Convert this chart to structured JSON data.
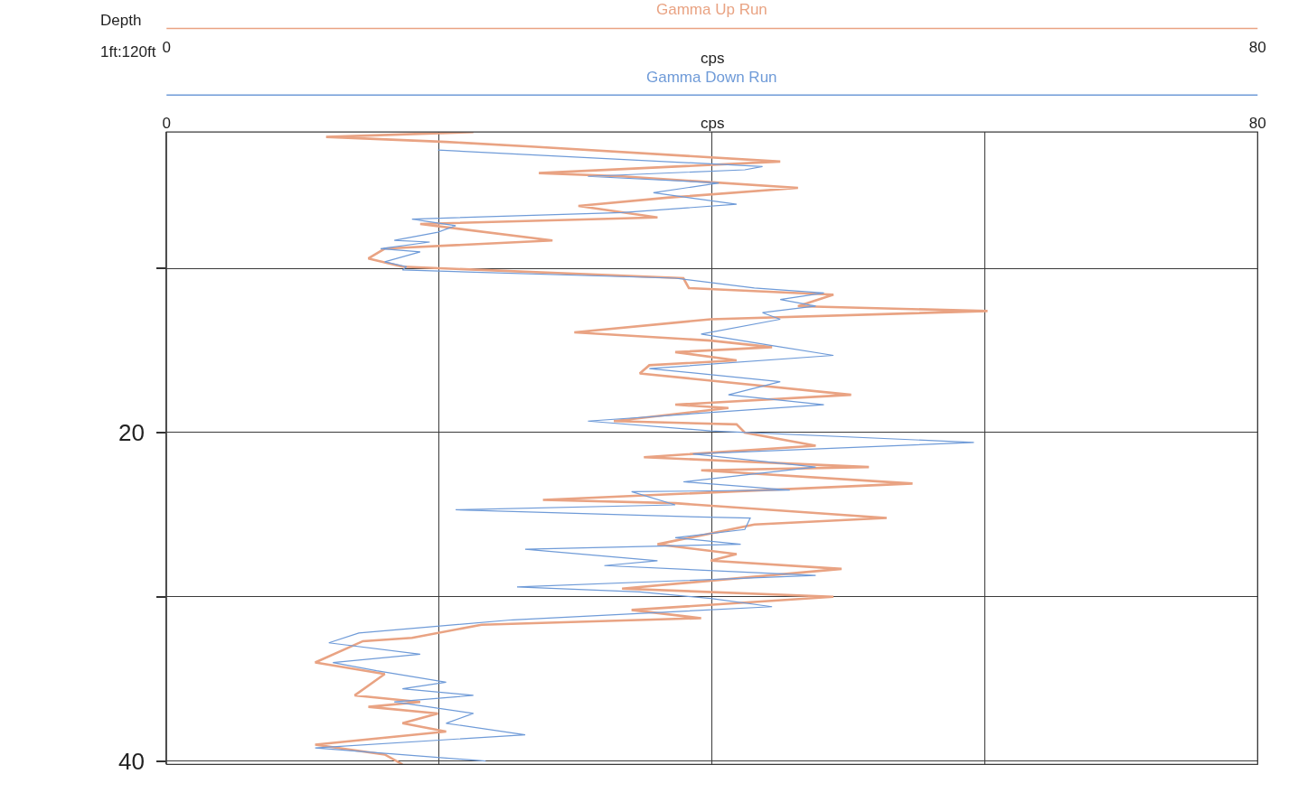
{
  "chart_data": {
    "type": "line",
    "ylabel": "Depth",
    "xlabel": "cps",
    "x2label": "cps",
    "annotations": [
      "1ft:120ft"
    ],
    "xlim": [
      0,
      80
    ],
    "xticks": [
      0,
      {
        "value": 20,
        "label": null
      },
      {
        "value": 40,
        "label": null
      },
      {
        "value": 60,
        "label": null
      },
      80
    ],
    "x2lim": [
      0,
      80
    ],
    "x2ticks": [
      0,
      80
    ],
    "ylim": [
      40.2,
      1.7
    ],
    "yticks": [
      {
        "value": 10,
        "label": null
      },
      20,
      {
        "value": 30,
        "label": null
      },
      40
    ],
    "grid": true,
    "legend": false,
    "marker": "none",
    "line_style": "solid",
    "series": [
      {
        "name": "Gamma Up Run",
        "color": "#e9a383",
        "x": [
          22.5,
          11.7,
          20.5,
          27.0,
          45.0,
          27.3,
          33.4,
          46.3,
          36.7,
          30.2,
          36.0,
          18.6,
          28.3,
          16.0,
          14.8,
          17.3,
          37.9,
          38.3,
          48.9,
          46.3,
          60.2,
          39.9,
          29.9,
          39.9,
          44.4,
          37.3,
          41.8,
          35.4,
          34.7,
          50.2,
          37.3,
          41.2,
          32.8,
          41.8,
          42.4,
          47.6,
          35.0,
          51.5,
          39.2,
          54.7,
          27.6,
          37.3,
          52.8,
          43.1,
          36.0,
          41.8,
          39.9,
          49.5,
          33.4,
          48.9,
          34.1,
          39.2,
          23.1,
          18.0,
          14.4,
          10.9,
          16.0,
          13.8,
          18.6,
          14.8,
          19.9,
          17.3,
          20.5,
          10.9,
          16.0,
          17.3
        ],
        "values": [
          1.7,
          2.0,
          2.3,
          2.6,
          3.5,
          4.2,
          4.4,
          5.1,
          5.7,
          6.2,
          6.9,
          7.3,
          8.3,
          8.8,
          9.4,
          9.9,
          10.6,
          11.2,
          11.6,
          12.3,
          12.6,
          13.1,
          13.9,
          14.4,
          14.8,
          15.1,
          15.6,
          15.9,
          16.4,
          17.7,
          18.3,
          18.5,
          19.3,
          19.5,
          20.0,
          20.8,
          21.5,
          22.1,
          22.3,
          23.1,
          24.1,
          24.3,
          25.2,
          25.6,
          26.8,
          27.4,
          27.8,
          28.3,
          29.5,
          30.0,
          30.8,
          31.3,
          31.7,
          32.5,
          32.7,
          34.0,
          34.7,
          36.0,
          36.4,
          36.7,
          37.1,
          37.7,
          38.2,
          39.0,
          39.6,
          40.2
        ]
      },
      {
        "name": "Gamma Down Run",
        "color": "#6f9bd8",
        "axis": "x2",
        "x": [
          19.9,
          43.7,
          42.4,
          30.9,
          40.5,
          35.7,
          41.8,
          33.4,
          18.0,
          21.2,
          19.9,
          16.7,
          19.3,
          15.7,
          18.6,
          16.0,
          17.6,
          17.3,
          37.3,
          43.1,
          48.2,
          45.0,
          47.6,
          43.7,
          45.0,
          39.2,
          44.4,
          48.9,
          35.4,
          45.0,
          41.2,
          48.2,
          30.9,
          39.9,
          59.2,
          38.6,
          47.6,
          37.9,
          45.7,
          34.1,
          37.3,
          21.2,
          37.3,
          42.8,
          42.4,
          37.3,
          42.1,
          26.3,
          36.0,
          32.1,
          47.6,
          25.7,
          34.7,
          39.9,
          44.4,
          25.4,
          14.1,
          11.9,
          18.6,
          12.2,
          15.4,
          20.5,
          17.3,
          22.5,
          16.7,
          22.5,
          20.5,
          26.3,
          10.9,
          23.4
        ],
        "values": [
          2.8,
          3.8,
          4.0,
          4.4,
          4.8,
          5.4,
          6.1,
          6.6,
          7.0,
          7.4,
          7.8,
          8.3,
          8.4,
          8.8,
          9.0,
          9.6,
          9.9,
          10.1,
          10.6,
          11.2,
          11.5,
          11.9,
          12.3,
          12.7,
          13.1,
          14.0,
          14.7,
          15.3,
          16.1,
          16.9,
          17.7,
          18.3,
          19.3,
          19.9,
          20.6,
          21.3,
          22.1,
          23.0,
          23.5,
          23.6,
          24.4,
          24.7,
          25.1,
          25.2,
          25.9,
          26.4,
          26.8,
          27.1,
          27.8,
          28.1,
          28.7,
          29.4,
          29.7,
          30.1,
          30.6,
          31.4,
          32.2,
          32.8,
          33.5,
          34.0,
          34.5,
          35.2,
          35.6,
          36.0,
          36.4,
          37.1,
          37.7,
          38.4,
          39.2,
          40.0
        ]
      }
    ]
  }
}
